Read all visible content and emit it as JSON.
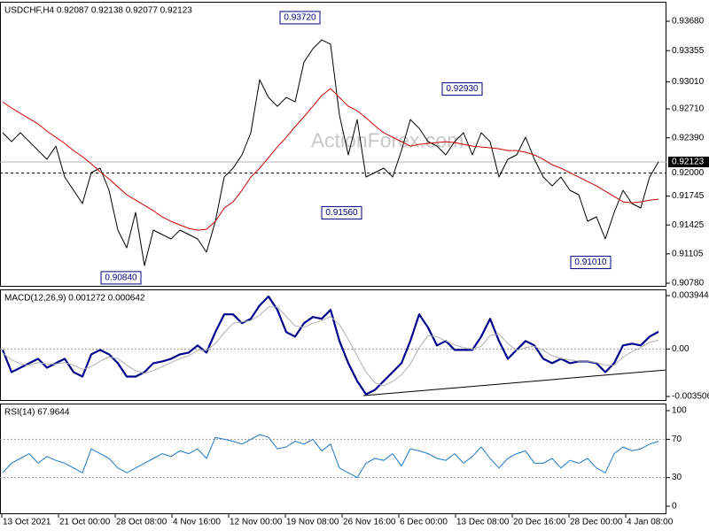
{
  "chart_data": [
    {
      "type": "line",
      "title": "USDCHF,H4  0.92087 0.92138 0.92077 0.92123",
      "watermark": "ActionForex.com",
      "ylim": [
        0.90751,
        0.93896
      ],
      "yticks": [
        {
          "value": 0.9368,
          "label": "0.93680"
        },
        0.93355,
        {
          "value": 0.9301,
          "label": "0.93010"
        },
        {
          "value": 0.9271,
          "label": "0.92710"
        },
        {
          "value": 0.9239,
          "label": "0.92390"
        },
        0.91745,
        0.91425,
        0.91105,
        {
          "value": 0.9078,
          "label": "0.90780"
        }
      ],
      "price_labels": [
        {
          "value": 0.92123,
          "label": "0.92123",
          "style": "current"
        },
        {
          "value": 0.92,
          "label": "0.92000",
          "style": "dashed"
        }
      ],
      "series": [
        {
          "color": "#000000",
          "style": "thin",
          "values": [
            0.92446,
            0.92348,
            0.92446,
            0.92348,
            0.9225,
            0.92152,
            0.92299,
            0.91956,
            0.91809,
            0.91662,
            0.92005,
            0.92054,
            0.91809,
            0.91368,
            0.91172,
            0.91564,
            0.90976,
            0.91368,
            0.91319,
            0.9127,
            0.91368,
            0.91319,
            0.9127,
            0.91123,
            0.91466,
            0.91956,
            0.92054,
            0.92201,
            0.92446,
            0.93033,
            0.92837,
            0.92739,
            0.92837,
            0.92788,
            0.93229,
            0.93376,
            0.93474,
            0.93425,
            0.92641,
            0.92201,
            0.92592,
            0.91956,
            0.92005,
            0.92054,
            0.91956,
            0.9225,
            0.92592,
            0.92495,
            0.92348,
            0.92299,
            0.92201,
            0.92348,
            0.92446,
            0.92201,
            0.92446,
            0.92348,
            0.91956,
            0.92152,
            0.92201,
            0.92397,
            0.92152,
            0.91956,
            0.91858,
            0.91956,
            0.91809,
            0.9176,
            0.91466,
            0.91515,
            0.9127,
            0.91564,
            0.91809,
            0.91662,
            0.91613,
            0.91956,
            0.92123
          ]
        },
        {
          "color": "#cc0000",
          "style": "thin",
          "values": [
            0.92788,
            0.9272,
            0.92661,
            0.92602,
            0.92543,
            0.92465,
            0.92396,
            0.92328,
            0.92249,
            0.92181,
            0.92102,
            0.92014,
            0.91936,
            0.91847,
            0.91759,
            0.917,
            0.91642,
            0.91583,
            0.91514,
            0.91465,
            0.91426,
            0.91387,
            0.91367,
            0.91377,
            0.91465,
            0.91612,
            0.91681,
            0.91808,
            0.91955,
            0.92053,
            0.92171,
            0.92288,
            0.92396,
            0.92514,
            0.92622,
            0.92739,
            0.92857,
            0.92935,
            0.92837,
            0.92739,
            0.9269,
            0.92612,
            0.92524,
            0.92445,
            0.92396,
            0.92347,
            0.92298,
            0.92318,
            0.92328,
            0.92337,
            0.92347,
            0.92337,
            0.92318,
            0.92298,
            0.92288,
            0.92279,
            0.92269,
            0.92249,
            0.92249,
            0.9223,
            0.922,
            0.92151,
            0.92092,
            0.92053,
            0.92004,
            0.91955,
            0.91906,
            0.91857,
            0.91798,
            0.9174,
            0.91681,
            0.91671,
            0.91681,
            0.917,
            0.9171
          ]
        }
      ],
      "annotations": [
        {
          "x": 35.9,
          "value": 0.9372,
          "label": "0.93720"
        },
        {
          "x": 54.2,
          "value": 0.9293,
          "label": "0.92930"
        },
        {
          "x": 40.6,
          "value": 0.9156,
          "label": "0.91560"
        },
        {
          "x": 15.7,
          "value": 0.9084,
          "label": "0.90840"
        },
        {
          "x": 68.7,
          "value": 0.9101,
          "label": "0.91010"
        }
      ]
    },
    {
      "type": "line",
      "title": "MACD(12,26,9) 0.001272 0.000642",
      "ylim": [
        -0.003767,
        0.004402
      ],
      "yticks": [
        0.003944,
        {
          "value": 0,
          "label": "0.00"
        },
        -0.003506
      ],
      "levels": [
        0
      ],
      "series": [
        {
          "color": "#00008b",
          "style": "bold",
          "values": [
            -6.6e-05,
            -0.001708,
            -0.00138,
            -0.001051,
            -0.000723,
            -0.00138,
            -0.001051,
            -0.000723,
            -0.001708,
            -0.002037,
            -0.000394,
            -6.6e-05,
            -0.000394,
            -0.001051,
            -0.002037,
            -0.002037,
            -0.001708,
            -0.001051,
            -0.00092,
            -0.000723,
            -0.000394,
            -0.000263,
            0.000263,
            -0.000263,
            0.001248,
            0.002562,
            0.002562,
            0.001905,
            0.002234,
            0.003219,
            0.003876,
            0.002891,
            0.001248,
            0.00092,
            0.001905,
            0.002365,
            0.002234,
            0.002891,
            0.000591,
            -0.001051,
            -0.002365,
            -0.003351,
            -0.003022,
            -0.002365,
            -0.001708,
            -0.001051,
            0.000591,
            0.002562,
            0.001577,
            0.000263,
            0.000591,
            -6.6e-05,
            -6.6e-05,
            -6.6e-05,
            0.00092,
            0.002234,
            0.000591,
            -0.000723,
            -6.6e-05,
            0.000591,
            0.000263,
            -0.000723,
            -0.001051,
            -0.000723,
            -0.001051,
            -0.00092,
            -0.00092,
            -0.001051,
            -0.001708,
            -0.001051,
            0.000263,
            0.000394,
            0.000263,
            0.00092,
            0.001272
          ]
        },
        {
          "color": "#b0b0b0",
          "style": "thin",
          "values": [
            -0.0003,
            -0.0008,
            -0.0011,
            -0.0012,
            -0.001,
            -0.0011,
            -0.0011,
            -0.001,
            -0.0012,
            -0.0015,
            -0.0013,
            -0.0009,
            -0.0006,
            -0.0007,
            -0.0012,
            -0.0016,
            -0.0018,
            -0.0016,
            -0.0013,
            -0.001,
            -0.0007,
            -0.0005,
            -0.0001,
            -0.0001,
            0.0004,
            0.0012,
            0.0019,
            0.002,
            0.0021,
            0.0025,
            0.0031,
            0.0031,
            0.0024,
            0.0017,
            0.0016,
            0.0019,
            0.0021,
            0.0024,
            0.0018,
            0.0007,
            -0.0005,
            -0.0017,
            -0.0025,
            -0.0027,
            -0.0024,
            -0.0019,
            -0.0011,
            0.0001,
            0.001,
            0.0009,
            0.0006,
            0.0003,
            0.0001,
            0,
            0.0002,
            0.001,
            0.0011,
            0.0004,
            -0.0001,
            0.0001,
            0.0002,
            -0.0001,
            -0.0005,
            -0.0007,
            -0.0008,
            -0.0009,
            -0.0009,
            -0.001,
            -0.0012,
            -0.0012,
            -0.0006,
            -0.0002,
            0.0001,
            0.0005,
            0.000642
          ]
        }
      ]
    },
    {
      "type": "line",
      "title": "RSI(14) 67.9644",
      "ylim": [
        -7.4,
        107.4
      ],
      "yticks": [
        100,
        70,
        30,
        0
      ],
      "levels": [
        70,
        30
      ],
      "xlim": [
        -0.3,
        74.9
      ],
      "xticks": [
        {
          "value": -0.1,
          "label": "13 Oct 2021"
        },
        {
          "value": 6.3,
          "label": "21 Oct 00:00"
        },
        {
          "value": 12.7,
          "label": "28 Oct 08:00"
        },
        {
          "value": 19.1,
          "label": "4 Nov 16:00"
        },
        {
          "value": 25.5,
          "label": "12 Nov 00:00"
        },
        {
          "value": 31.9,
          "label": "19 Nov 08:00"
        },
        {
          "value": 38.3,
          "label": "26 Nov 16:00"
        },
        {
          "value": 44.7,
          "label": "6 Dec 00:00"
        },
        {
          "value": 51.1,
          "label": "13 Dec 08:00"
        },
        {
          "value": 57.5,
          "label": "20 Dec 16:00"
        },
        {
          "value": 63.9,
          "label": "28 Dec 00:00"
        },
        {
          "value": 70.3,
          "label": "4 Jan 08:00"
        }
      ],
      "series": [
        {
          "color": "#1e78c8",
          "style": "thin",
          "values": [
            35,
            45,
            50,
            55,
            45,
            52,
            48,
            45,
            40,
            35,
            60,
            55,
            50,
            40,
            35,
            40,
            45,
            50,
            55,
            52,
            58,
            55,
            60,
            50,
            72,
            70,
            68,
            65,
            70,
            75,
            72,
            60,
            62,
            68,
            65,
            70,
            58,
            65,
            40,
            35,
            30,
            45,
            50,
            48,
            55,
            42,
            60,
            58,
            55,
            50,
            48,
            55,
            45,
            52,
            62,
            50,
            40,
            50,
            55,
            58,
            45,
            45,
            50,
            40,
            48,
            45,
            50,
            40,
            35,
            55,
            62,
            58,
            60,
            65,
            67.9644
          ]
        }
      ]
    }
  ]
}
